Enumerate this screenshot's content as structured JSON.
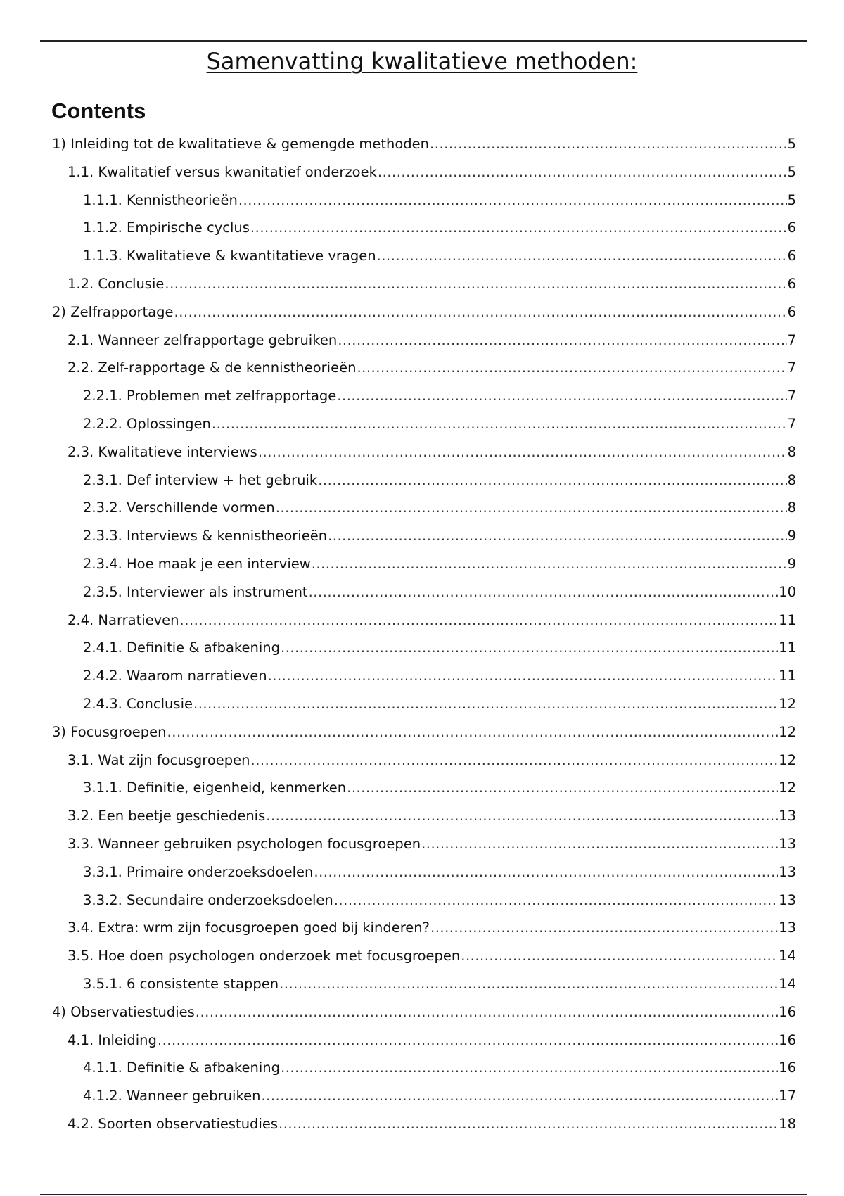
{
  "title": "Samenvatting kwalitatieve methoden:",
  "contents_heading": "Contents",
  "toc": [
    {
      "label": "1) Inleiding tot de kwalitatieve & gemengde methoden",
      "page": "5",
      "level": 1
    },
    {
      "label": "1.1. Kwalitatief versus kwanitatief onderzoek",
      "page": "5",
      "level": 2
    },
    {
      "label": "1.1.1. Kennistheorieën",
      "page": "5",
      "level": 3
    },
    {
      "label": "1.1.2. Empirische cyclus",
      "page": "6",
      "level": 3
    },
    {
      "label": "1.1.3. Kwalitatieve & kwantitatieve vragen",
      "page": "6",
      "level": 3
    },
    {
      "label": "1.2. Conclusie",
      "page": "6",
      "level": 2
    },
    {
      "label": "2) Zelfrapportage",
      "page": "6",
      "level": 1
    },
    {
      "label": "2.1. Wanneer zelfrapportage gebruiken",
      "page": "7",
      "level": 2
    },
    {
      "label": "2.2. Zelf-rapportage & de kennistheorieën",
      "page": "7",
      "level": 2
    },
    {
      "label": "2.2.1. Problemen met zelfrapportage",
      "page": "7",
      "level": 3
    },
    {
      "label": "2.2.2. Oplossingen",
      "page": "7",
      "level": 3
    },
    {
      "label": "2.3. Kwalitatieve interviews",
      "page": "8",
      "level": 2
    },
    {
      "label": "2.3.1. Def interview + het gebruik",
      "page": "8",
      "level": 3
    },
    {
      "label": "2.3.2. Verschillende vormen",
      "page": "8",
      "level": 3
    },
    {
      "label": "2.3.3. Interviews & kennistheorieën",
      "page": "9",
      "level": 3
    },
    {
      "label": "2.3.4. Hoe maak je een interview",
      "page": "9",
      "level": 3
    },
    {
      "label": "2.3.5. Interviewer als instrument",
      "page": "10",
      "level": 3
    },
    {
      "label": "2.4. Narratieven",
      "page": "11",
      "level": 2
    },
    {
      "label": "2.4.1. Definitie & afbakening",
      "page": "11",
      "level": 3
    },
    {
      "label": "2.4.2. Waarom narratieven",
      "page": "11",
      "level": 3
    },
    {
      "label": "2.4.3. Conclusie",
      "page": "12",
      "level": 3
    },
    {
      "label": "3) Focusgroepen",
      "page": "12",
      "level": 1
    },
    {
      "label": "3.1. Wat zijn focusgroepen",
      "page": "12",
      "level": 2
    },
    {
      "label": "3.1.1. Definitie, eigenheid, kenmerken",
      "page": "12",
      "level": 3
    },
    {
      "label": "3.2. Een beetje geschiedenis",
      "page": "13",
      "level": 2
    },
    {
      "label": "3.3. Wanneer gebruiken psychologen focusgroepen",
      "page": "13",
      "level": 2
    },
    {
      "label": "3.3.1. Primaire onderzoeksdoelen",
      "page": "13",
      "level": 3
    },
    {
      "label": "3.3.2. Secundaire onderzoeksdoelen",
      "page": "13",
      "level": 3
    },
    {
      "label": "3.4. Extra: wrm zijn focusgroepen goed bij kinderen?",
      "page": "13",
      "level": 2
    },
    {
      "label": "3.5. Hoe doen psychologen onderzoek met focusgroepen",
      "page": "14",
      "level": 2
    },
    {
      "label": "3.5.1. 6 consistente stappen",
      "page": "14",
      "level": 3
    },
    {
      "label": "4) Observatiestudies",
      "page": "16",
      "level": 1
    },
    {
      "label": "4.1. Inleiding",
      "page": "16",
      "level": 2
    },
    {
      "label": "4.1.1. Definitie & afbakening",
      "page": "16",
      "level": 3
    },
    {
      "label": "4.1.2. Wanneer gebruiken",
      "page": "17",
      "level": 3
    },
    {
      "label": "4.2. Soorten observatiestudies",
      "page": "18",
      "level": 2
    }
  ]
}
